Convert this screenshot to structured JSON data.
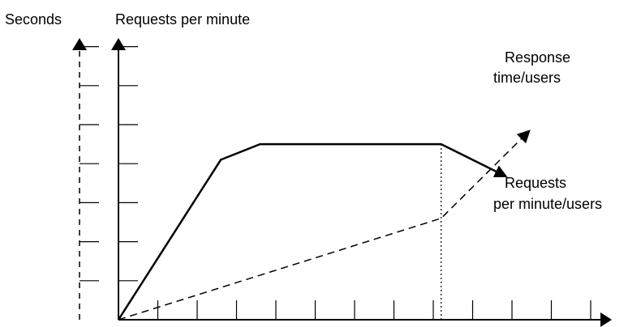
{
  "chart_data": {
    "type": "line",
    "title": "",
    "xlabel": "",
    "ylabel": "Requests per minute",
    "y2label": "Seconds",
    "x_ticks": 12,
    "y_ticks": 7,
    "y2_ticks": 7,
    "grid": false,
    "series": [
      {
        "name": "Requests per minute/users",
        "axis": "left",
        "style": "solid",
        "points": [
          [
            0,
            0
          ],
          [
            2.6,
            4.1
          ],
          [
            3.6,
            4.5
          ],
          [
            8.2,
            4.5
          ],
          [
            9.8,
            3.7
          ]
        ]
      },
      {
        "name": "Response time/users",
        "axis": "right",
        "style": "dashed",
        "points": [
          [
            0,
            0
          ],
          [
            8.2,
            2.6
          ],
          [
            10.4,
            4.8
          ]
        ]
      }
    ],
    "annotations": [
      {
        "type": "vertical-dotted",
        "x": 8.2,
        "from_y": 0,
        "to_y": 4.5
      }
    ]
  }
}
